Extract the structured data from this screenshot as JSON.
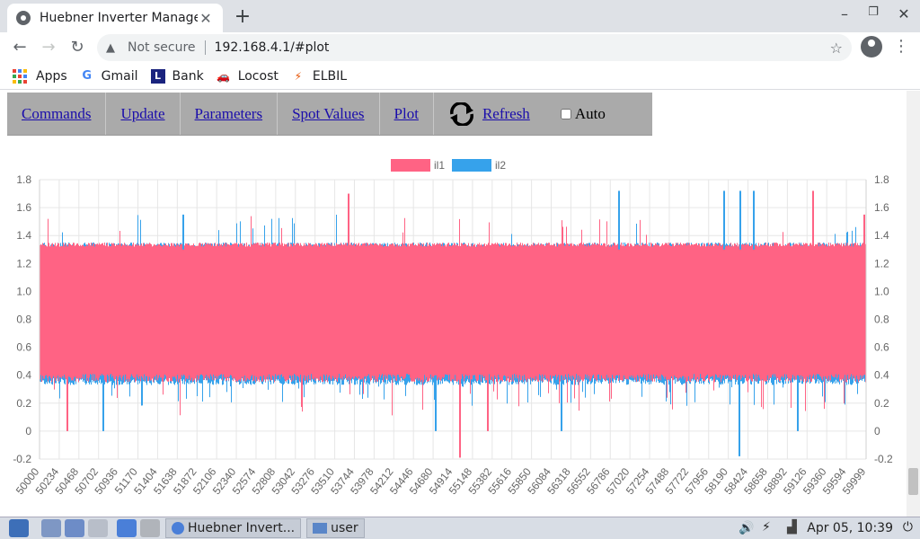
{
  "browser": {
    "tab_title": "Huebner Inverter Manage",
    "tab_close": "✕",
    "new_tab": "+",
    "not_secure": "Not secure",
    "url": "192.168.4.1/#plot",
    "window_controls": [
      "–",
      "❐",
      "✕"
    ]
  },
  "bookmarks": [
    {
      "label": "Apps",
      "icon": "apps-grid-icon"
    },
    {
      "label": "Gmail",
      "icon": "google-icon"
    },
    {
      "label": "Bank",
      "icon": "bank-icon"
    },
    {
      "label": "Locost",
      "icon": "car-icon"
    },
    {
      "label": "ELBIL",
      "icon": "elbil-icon"
    }
  ],
  "nav": {
    "commands": "Commands",
    "update": "Update",
    "parameters": "Parameters",
    "spot_values": "Spot Values",
    "plot": "Plot",
    "refresh": "Refresh",
    "auto": "Auto"
  },
  "colors": {
    "il1": "#ff6384",
    "il2": "#36a2eb"
  },
  "chart_data": {
    "type": "line",
    "series": [
      {
        "name": "il1",
        "color": "#ff6384",
        "band_min": 0.35,
        "band_max": 1.35,
        "spikes_up": [
          1.7,
          1.7,
          1.55,
          1.62
        ],
        "spikes_down": [
          -0.18,
          0.0,
          -0.02,
          0.16
        ]
      },
      {
        "name": "il2",
        "color": "#36a2eb",
        "band_min": 0.35,
        "band_max": 1.35,
        "spikes_up": [
          1.72,
          1.72,
          1.72,
          1.55
        ],
        "spikes_down": [
          -0.18,
          0.0,
          0.16
        ]
      }
    ],
    "x_ticks": [
      "50000",
      "50234",
      "50468",
      "50702",
      "50936",
      "51170",
      "51404",
      "51638",
      "51872",
      "52106",
      "52340",
      "52574",
      "52808",
      "53042",
      "53276",
      "53510",
      "53744",
      "53978",
      "54212",
      "54446",
      "54680",
      "54914",
      "55148",
      "55382",
      "55616",
      "55850",
      "56084",
      "56318",
      "56552",
      "56786",
      "57020",
      "57254",
      "57488",
      "57722",
      "57956",
      "58190",
      "58424",
      "58658",
      "58892",
      "59126",
      "59360",
      "59594",
      "59999"
    ],
    "x_range": [
      50000,
      59999
    ],
    "y_ticks": [
      "1.8",
      "1.6",
      "1.4",
      "1.2",
      "1.0",
      "0.8",
      "0.6",
      "0.4",
      "0.2",
      "0",
      "-0.2"
    ],
    "ylim": [
      -0.2,
      1.8
    ],
    "legend_position": "top",
    "grid": true
  },
  "taskbar": {
    "task_browser": "Huebner Invert...",
    "task_folder": "user",
    "clock": "Apr 05, 10:39"
  }
}
